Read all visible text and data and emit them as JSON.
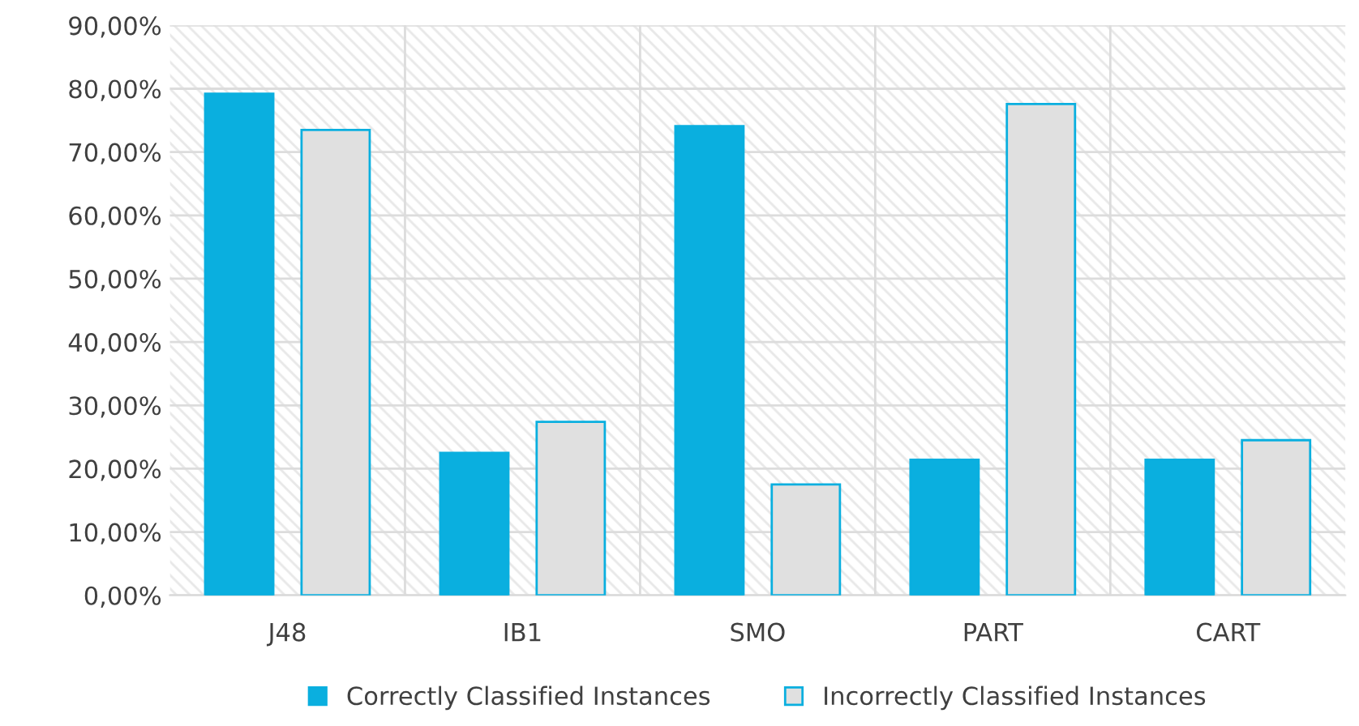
{
  "chart_data": {
    "type": "bar",
    "categories": [
      "J48",
      "IB1",
      "SMO",
      "PART",
      "CART"
    ],
    "series": [
      {
        "name": "Correctly Classified Instances",
        "color": "#0aafdf",
        "values": [
          79.2,
          22.5,
          74.1,
          21.4,
          21.4
        ]
      },
      {
        "name": "Incorrectly Classified Instances",
        "color": "#e0e0e0",
        "values": [
          73.5,
          27.4,
          17.5,
          77.6,
          24.5
        ]
      }
    ],
    "ylim": [
      0,
      90
    ],
    "yticks": [
      {
        "value": 0,
        "label": "0,00%"
      },
      {
        "value": 10,
        "label": "10,00%"
      },
      {
        "value": 20,
        "label": "20,00%"
      },
      {
        "value": 30,
        "label": "30,00%"
      },
      {
        "value": 40,
        "label": "40,00%"
      },
      {
        "value": 50,
        "label": "50,00%"
      },
      {
        "value": 60,
        "label": "60,00%"
      },
      {
        "value": 70,
        "label": "70,00%"
      },
      {
        "value": 80,
        "label": "80,00%"
      },
      {
        "value": 90,
        "label": "90,00%"
      }
    ],
    "grid": true,
    "legend": "bottom"
  }
}
